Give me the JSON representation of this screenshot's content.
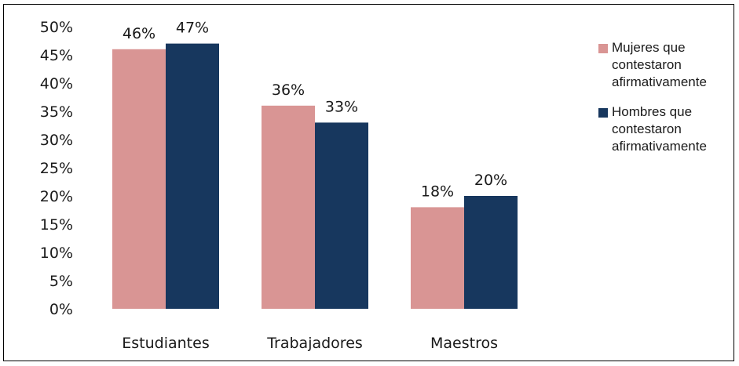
{
  "chart_data": {
    "type": "bar",
    "categories": [
      "Estudiantes",
      "Trabajadores",
      "Maestros"
    ],
    "series": [
      {
        "name": "Mujeres que contestaron afirmativamente",
        "values": [
          46,
          36,
          18
        ],
        "labels": [
          "46%",
          "36%",
          "18%"
        ],
        "color": "#d99594"
      },
      {
        "name": "Hombres que contestaron afirmativamente",
        "values": [
          47,
          33,
          20
        ],
        "labels": [
          "47%",
          "33%",
          "20%"
        ],
        "color": "#17375e"
      }
    ],
    "y_ticks": [
      "0%",
      "5%",
      "10%",
      "15%",
      "20%",
      "25%",
      "30%",
      "35%",
      "40%",
      "45%",
      "50%"
    ],
    "ylim": [
      0,
      50
    ],
    "grid": false,
    "legend_position": "right"
  }
}
